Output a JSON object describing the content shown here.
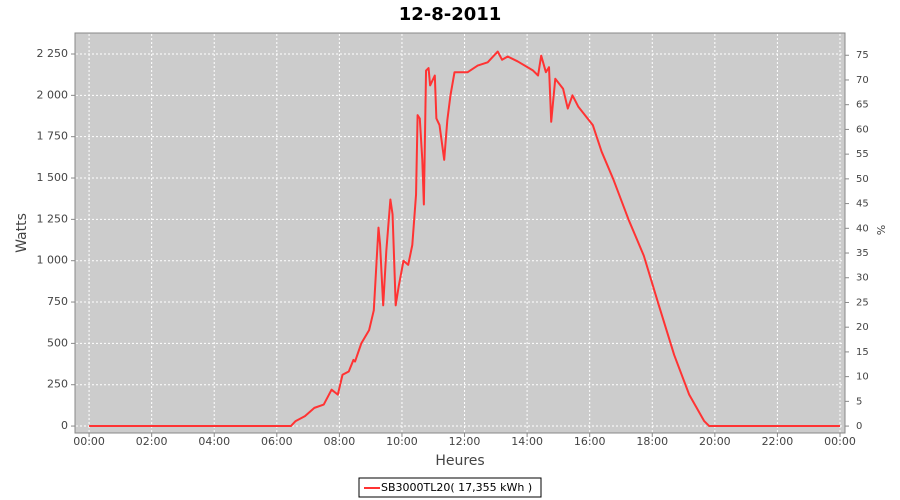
{
  "chart_data": {
    "type": "line",
    "title": "12-8-2011",
    "x_label": "Heures",
    "y_label": "Watts",
    "y2_label": "%",
    "x": [
      0,
      6.45,
      6.6,
      6.9,
      7.2,
      7.5,
      7.75,
      7.95,
      8.1,
      8.3,
      8.45,
      8.5,
      8.7,
      8.95,
      9.1,
      9.25,
      9.3,
      9.4,
      9.5,
      9.63,
      9.7,
      9.8,
      9.9,
      10.05,
      10.2,
      10.33,
      10.45,
      10.5,
      10.57,
      10.65,
      10.7,
      10.77,
      10.85,
      10.9,
      11.05,
      11.1,
      11.2,
      11.35,
      11.45,
      11.55,
      11.68,
      12.1,
      12.42,
      12.74,
      13.06,
      13.2,
      13.38,
      13.7,
      14.19,
      14.35,
      14.45,
      14.6,
      14.7,
      14.77,
      14.9,
      15.15,
      15.3,
      15.45,
      15.64,
      16.1,
      16.38,
      16.76,
      17.25,
      17.73,
      18.21,
      18.7,
      19.18,
      19.66,
      19.82,
      24
    ],
    "series": [
      {
        "name": "SB3000TL20( 17,355 kWh )",
        "color": "#ff3333",
        "values": [
          0,
          0,
          30,
          60,
          110,
          130,
          220,
          190,
          310,
          330,
          400,
          390,
          500,
          580,
          700,
          1200,
          1100,
          730,
          1060,
          1370,
          1280,
          730,
          850,
          1000,
          975,
          1095,
          1400,
          1880,
          1860,
          1610,
          1340,
          2150,
          2165,
          2060,
          2120,
          1860,
          1820,
          1610,
          1850,
          2000,
          2140,
          2140,
          2180,
          2200,
          2265,
          2215,
          2235,
          2205,
          2150,
          2120,
          2240,
          2140,
          2170,
          1840,
          2100,
          2040,
          1920,
          2000,
          1930,
          1820,
          1660,
          1490,
          1245,
          1030,
          730,
          430,
          190,
          30,
          0,
          0
        ]
      }
    ],
    "xlim": [
      -0.45,
      24.16
    ],
    "xticks": [
      {
        "value": 0,
        "label": "00:00"
      },
      {
        "value": 2,
        "label": "02:00"
      },
      {
        "value": 4,
        "label": "04:00"
      },
      {
        "value": 6,
        "label": "06:00"
      },
      {
        "value": 8,
        "label": "08:00"
      },
      {
        "value": 10,
        "label": "10:00"
      },
      {
        "value": 12,
        "label": "12:00"
      },
      {
        "value": 14,
        "label": "14:00"
      },
      {
        "value": 16,
        "label": "16:00"
      },
      {
        "value": 18,
        "label": "18:00"
      },
      {
        "value": 20,
        "label": "20:00"
      },
      {
        "value": 22,
        "label": "22:00"
      },
      {
        "value": 24,
        "label": "00:00"
      }
    ],
    "ylim": [
      -42,
      2377
    ],
    "yticks": [
      0,
      250,
      500,
      750,
      {
        "value": 1000,
        "label": "1 000"
      },
      {
        "value": 1250,
        "label": "1 250"
      },
      {
        "value": 1500,
        "label": "1 500"
      },
      {
        "value": 1750,
        "label": "1 750"
      },
      {
        "value": 2000,
        "label": "2 000"
      },
      {
        "value": 2250,
        "label": "2 250"
      }
    ],
    "y2lim": [
      -1.4,
      79.5
    ],
    "y2ticks": [
      0,
      5,
      10,
      15,
      20,
      25,
      30,
      35,
      40,
      45,
      50,
      55,
      60,
      65,
      70,
      75
    ],
    "grid": true
  }
}
